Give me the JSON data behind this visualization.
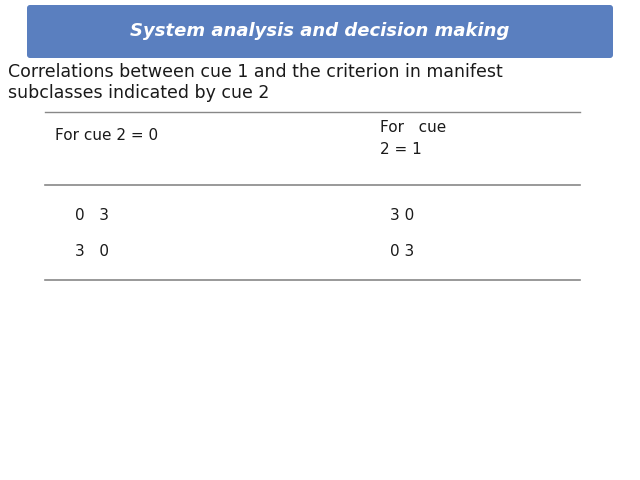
{
  "title": "System analysis and decision making",
  "title_bg_color": "#5a7fbf",
  "title_text_color": "#ffffff",
  "subtitle_line1": "Correlations between cue 1 and the criterion in manifest",
  "subtitle_line2": "subclasses indicated by cue 2",
  "col1_header": "For cue 2 = 0",
  "col2_header_line1": "For   cue",
  "col2_header_line2": "2 = 1",
  "table_data": [
    [
      "0   3",
      "3 0"
    ],
    [
      "3   0",
      "0 3"
    ]
  ],
  "bg_color": "#ffffff",
  "text_color": "#1a1a1a",
  "header_fontsize": 11,
  "data_fontsize": 11,
  "subtitle_fontsize": 12.5,
  "title_fontsize": 13,
  "line_color": "#888888"
}
